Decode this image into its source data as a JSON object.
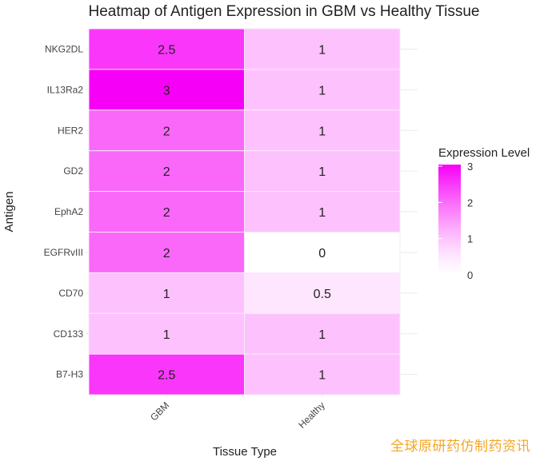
{
  "chart_data": {
    "type": "heatmap",
    "title": "Heatmap of Antigen Expression in GBM vs Healthy Tissue",
    "xlabel": "Tissue Type",
    "ylabel": "Antigen",
    "x_categories": [
      "GBM",
      "Healthy"
    ],
    "y_categories": [
      "NKG2DL",
      "IL13Ra2",
      "HER2",
      "GD2",
      "EphA2",
      "EGFRvIII",
      "CD70",
      "CD133",
      "B7-H3"
    ],
    "values": [
      [
        2.5,
        1
      ],
      [
        3,
        1
      ],
      [
        2,
        1
      ],
      [
        2,
        1
      ],
      [
        2,
        1
      ],
      [
        2,
        0
      ],
      [
        1,
        0.5
      ],
      [
        1,
        1
      ],
      [
        2.5,
        1
      ]
    ],
    "legend": {
      "title": "Expression Level",
      "ticks": [
        3,
        2,
        1,
        0
      ],
      "range": [
        0,
        3
      ],
      "low_color": "#ffffff",
      "high_color": "#ff00ff",
      "placement": "right"
    },
    "grid": true
  },
  "watermark": "全球原研药仿制药资讯"
}
